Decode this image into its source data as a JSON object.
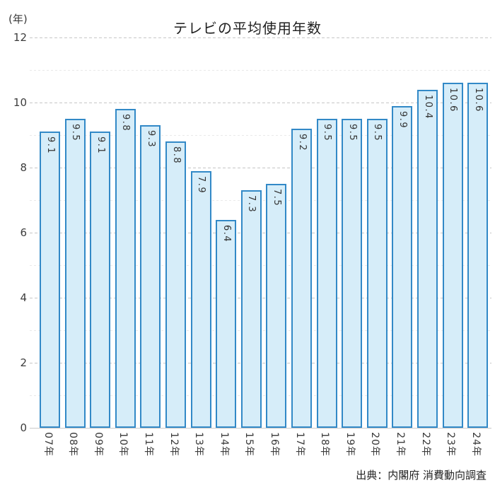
{
  "header": {
    "title": "テレビの平均使用年数",
    "y_unit_label": "(年)"
  },
  "chart_data": {
    "type": "bar",
    "title": "テレビの平均使用年数",
    "categories": [
      "07年",
      "08年",
      "09年",
      "10年",
      "11年",
      "12年",
      "13年",
      "14年",
      "15年",
      "16年",
      "17年",
      "18年",
      "19年",
      "20年",
      "21年",
      "22年",
      "23年",
      "24年"
    ],
    "values": [
      9.1,
      9.5,
      9.1,
      9.8,
      9.3,
      8.8,
      7.9,
      6.4,
      7.3,
      7.5,
      9.2,
      9.5,
      9.5,
      9.5,
      9.9,
      10.4,
      10.6,
      10.6
    ],
    "xlabel": "",
    "ylabel": "(年)",
    "ylim": [
      0,
      12
    ],
    "y_ticks": [
      12,
      10,
      8,
      6,
      4,
      2,
      0
    ],
    "grid": "horizontal; major dashed lines at even values, faint minor lines at odd values",
    "legend": "none",
    "bar_fill_color": "#d6edf9",
    "bar_border_color": "#3289c7",
    "value_label_style": "rotated 90deg, inside top of each bar",
    "category_label_style": "rotated 90deg below axis"
  },
  "footer": {
    "source": "出典：内閣府 消費動向調査"
  }
}
